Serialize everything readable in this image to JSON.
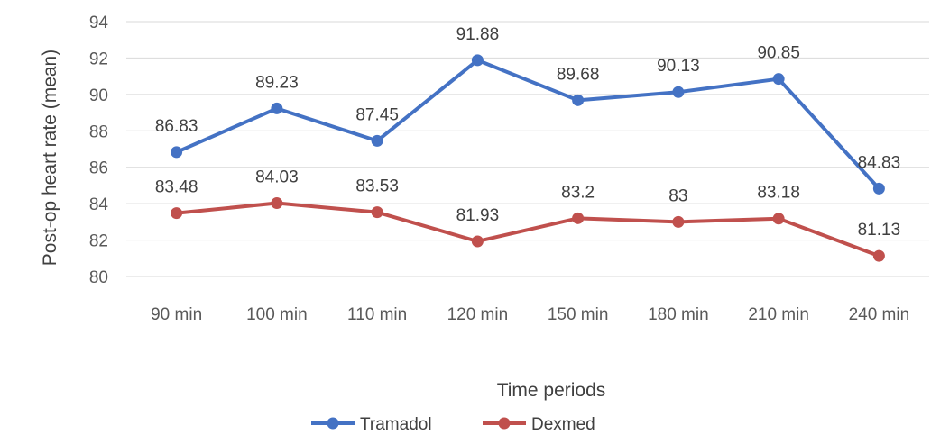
{
  "chart_data": {
    "type": "line",
    "title": "",
    "xlabel": "Time periods",
    "ylabel": "Post-op heart rate (mean)",
    "categories": [
      "90 min",
      "100 min",
      "110 min",
      "120 min",
      "150 min",
      "180 min",
      "210 min",
      "240 min"
    ],
    "ylim": [
      80,
      94
    ],
    "yticks": [
      80,
      82,
      84,
      86,
      88,
      90,
      92,
      94
    ],
    "grid": true,
    "legend_position": "bottom",
    "series": [
      {
        "name": "Tramadol",
        "color": "#4472C4",
        "values": [
          86.83,
          89.23,
          87.45,
          91.88,
          89.68,
          90.13,
          90.85,
          84.83
        ],
        "labels": [
          "86.83",
          "89.23",
          "87.45",
          "91.88",
          "89.68",
          "90.13",
          "90.85",
          "84.83"
        ]
      },
      {
        "name": "Dexmed",
        "color": "#C0504D",
        "values": [
          83.48,
          84.03,
          83.53,
          81.93,
          83.2,
          83,
          83.18,
          81.13
        ],
        "labels": [
          "83.48",
          "84.03",
          "83.53",
          "81.93",
          "83.2",
          "83",
          "83.18",
          "81.13"
        ]
      }
    ]
  }
}
